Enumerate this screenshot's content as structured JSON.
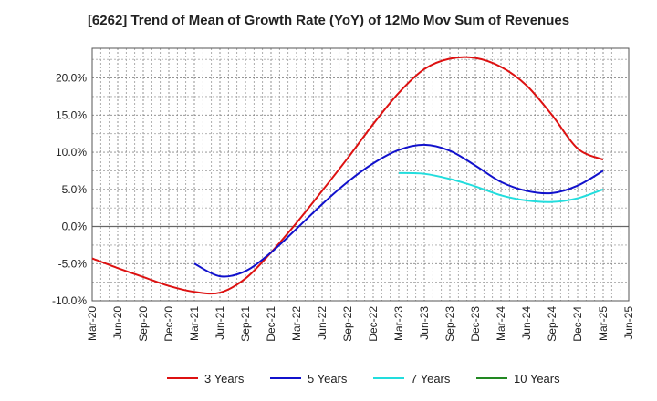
{
  "chart_data": {
    "type": "line",
    "title": "[6262]  Trend of Mean of Growth Rate (YoY) of 12Mo Mov Sum of Revenues",
    "xlabel": "",
    "ylabel": "",
    "ylim": [
      -10,
      24
    ],
    "yticks": [
      -10,
      -5,
      0,
      5,
      10,
      15,
      20
    ],
    "ytick_labels": [
      "-10.0%",
      "-5.0%",
      "0.0%",
      "5.0%",
      "10.0%",
      "15.0%",
      "20.0%"
    ],
    "categories": [
      "Mar-20",
      "Jun-20",
      "Sep-20",
      "Dec-20",
      "Mar-21",
      "Jun-21",
      "Sep-21",
      "Dec-21",
      "Mar-22",
      "Jun-22",
      "Sep-22",
      "Dec-22",
      "Mar-23",
      "Jun-23",
      "Sep-23",
      "Dec-23",
      "Mar-24",
      "Jun-24",
      "Sep-24",
      "Dec-24",
      "Mar-25",
      "Jun-25"
    ],
    "grid": true,
    "legend_position": "bottom",
    "series": [
      {
        "name": "3 Years",
        "color": "#dd1111",
        "values": [
          -4.3,
          -5.6,
          -6.8,
          -8.0,
          -8.8,
          -8.9,
          -7.0,
          -3.5,
          0.5,
          4.8,
          9.2,
          13.8,
          18.0,
          21.2,
          22.6,
          22.7,
          21.5,
          19.0,
          15.0,
          10.5,
          9.0,
          null
        ]
      },
      {
        "name": "5 Years",
        "color": "#1111cc",
        "values": [
          null,
          null,
          null,
          null,
          -5.0,
          -6.7,
          -6.0,
          -3.5,
          -0.3,
          3.0,
          6.0,
          8.5,
          10.3,
          11.0,
          10.2,
          8.2,
          6.0,
          4.8,
          4.5,
          5.5,
          7.5,
          null
        ]
      },
      {
        "name": "7 Years",
        "color": "#22dddd",
        "values": [
          null,
          null,
          null,
          null,
          null,
          null,
          null,
          null,
          null,
          null,
          null,
          null,
          7.2,
          7.1,
          6.4,
          5.4,
          4.2,
          3.5,
          3.3,
          3.8,
          5.0,
          null
        ]
      },
      {
        "name": "10 Years",
        "color": "#228822",
        "values": [
          null,
          null,
          null,
          null,
          null,
          null,
          null,
          null,
          null,
          null,
          null,
          null,
          null,
          null,
          null,
          null,
          null,
          null,
          null,
          null,
          null,
          null
        ]
      }
    ]
  }
}
